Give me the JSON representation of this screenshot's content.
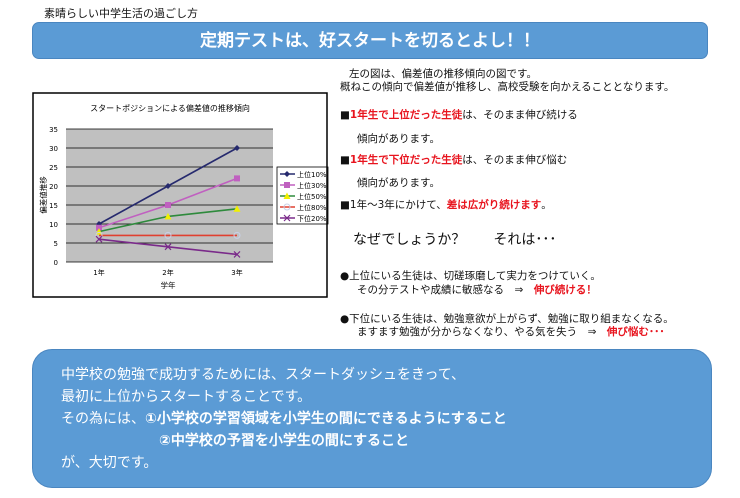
{
  "header": {
    "pretitle": "素晴らしい中学生活の過ごし方",
    "title": "定期テストは、好スタートを切るとよし！！"
  },
  "right": {
    "intro1": "左の図は、偏差値の推移傾向の図です。",
    "intro2": "概ねこの傾向で偏差値が推移し、高校受験を向かえることとなります。",
    "b1_mark": "■",
    "b1_red": "1年生で上位だった生徒",
    "b1_rest": "は、そのまま伸び続ける",
    "b1_cont": "傾向があります。",
    "b2_mark": "■",
    "b2_red": "1年生で下位だった生徒",
    "b2_rest": "は、そのまま伸び悩む",
    "b2_cont": "傾向があります。",
    "b3_mark": "■",
    "b3_pre": "1年～3年にかけて、",
    "b3_red": "差は広がり続けます",
    "b3_end": "。",
    "question": "なぜでしょうか？　　それは･･･",
    "c1_line1": "●上位にいる生徒は、切磋琢磨して実力をつけていく。",
    "c1_line2": "その分テストや成績に敏感なる　⇒　",
    "c1_red": "伸び続ける！",
    "c2_line1": "●下位にいる生徒は、勉強意欲が上がらず、勉強に取り組まなくなる。",
    "c2_line2": "ますます勉強が分からなくなり、やる気を失う　⇒　",
    "c2_red": "伸び悩む･･･"
  },
  "bottom": {
    "l1": "中学校の勉強で成功するためには、スタートダッシュをきって、",
    "l2": "最初に上位からスタートすることです。",
    "l3_pre": "その為には、",
    "l3_b": "①小学校の学習領域を小学生の間にできるようにすること",
    "l4_b": "②中学校の予習を小学生の間にすること",
    "l5": "が、大切です。"
  },
  "chart_data": {
    "type": "line",
    "title": "スタートポジションによる偏差値の推移傾向",
    "xlabel": "学年",
    "ylabel": "偏差値推移",
    "categories": [
      "1年",
      "2年",
      "3年"
    ],
    "ylim": [
      0,
      35
    ],
    "yticks": [
      0,
      5,
      10,
      15,
      20,
      25,
      30,
      35
    ],
    "grid": true,
    "legend": "right",
    "plot_bg": "#c0c0c0",
    "series": [
      {
        "name": "上位10%",
        "values": [
          10,
          20,
          30
        ],
        "color": "#262a6e",
        "marker": "diamond"
      },
      {
        "name": "上位30%",
        "values": [
          9,
          15,
          22
        ],
        "color": "#c060c0",
        "marker": "square"
      },
      {
        "name": "上位50%",
        "values": [
          8,
          12,
          14
        ],
        "color": "#2e8a3c",
        "marker": "triangle"
      },
      {
        "name": "上位80%",
        "values": [
          7,
          7,
          7
        ],
        "color": "#e04030",
        "marker": "circle"
      },
      {
        "name": "下位20%",
        "values": [
          6,
          4,
          2
        ],
        "color": "#7a2a8a",
        "marker": "x"
      }
    ]
  }
}
